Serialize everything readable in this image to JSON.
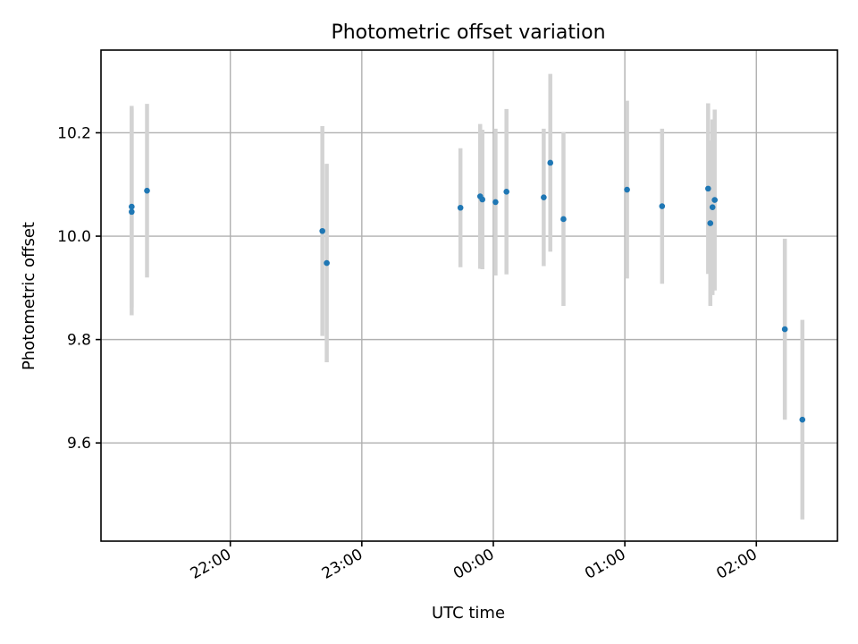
{
  "chart_data": {
    "type": "scatter",
    "title": "Photometric offset variation",
    "xlabel": "UTC time",
    "ylabel": "Photometric offset",
    "x_axis": "time",
    "x_tick_labels": [
      "22:00",
      "23:00",
      "00:00",
      "01:00",
      "02:00"
    ],
    "x_ticks": [
      "22:00",
      "23:00",
      "00:00",
      "01:00",
      "02:00"
    ],
    "xlim": [
      "21:01",
      "02:37"
    ],
    "y_ticks": [
      9.6,
      9.8,
      10.0,
      10.2
    ],
    "y_tick_labels": [
      "9.6",
      "9.8",
      "10.0",
      "10.2"
    ],
    "ylim": [
      9.41,
      10.36
    ],
    "grid": true,
    "colors": {
      "marker": "#1f77b4",
      "errorbar": "#d3d3d3",
      "grid": "#b0b0b0"
    },
    "points": [
      {
        "x": "21:15",
        "y": 10.057,
        "err": 0.195
      },
      {
        "x": "21:15",
        "y": 10.047,
        "err": 0.2
      },
      {
        "x": "21:22",
        "y": 10.088,
        "err": 0.168
      },
      {
        "x": "22:42",
        "y": 10.01,
        "err": 0.203
      },
      {
        "x": "22:44",
        "y": 9.948,
        "err": 0.192
      },
      {
        "x": "23:45",
        "y": 10.055,
        "err": 0.115
      },
      {
        "x": "23:54",
        "y": 10.077,
        "err": 0.14
      },
      {
        "x": "23:55",
        "y": 10.071,
        "err": 0.135
      },
      {
        "x": "00:01",
        "y": 10.066,
        "err": 0.142
      },
      {
        "x": "00:06",
        "y": 10.086,
        "err": 0.16
      },
      {
        "x": "00:23",
        "y": 10.075,
        "err": 0.133
      },
      {
        "x": "00:26",
        "y": 10.142,
        "err": 0.172
      },
      {
        "x": "00:32",
        "y": 10.033,
        "err": 0.168
      },
      {
        "x": "01:01",
        "y": 10.09,
        "err": 0.172
      },
      {
        "x": "01:17",
        "y": 10.058,
        "err": 0.15
      },
      {
        "x": "01:38",
        "y": 10.092,
        "err": 0.165
      },
      {
        "x": "01:39",
        "y": 10.025,
        "err": 0.16
      },
      {
        "x": "01:40",
        "y": 10.056,
        "err": 0.17
      },
      {
        "x": "01:41",
        "y": 10.07,
        "err": 0.175
      },
      {
        "x": "02:13",
        "y": 9.82,
        "err": 0.175
      },
      {
        "x": "02:21",
        "y": 9.645,
        "err": 0.193
      }
    ]
  }
}
